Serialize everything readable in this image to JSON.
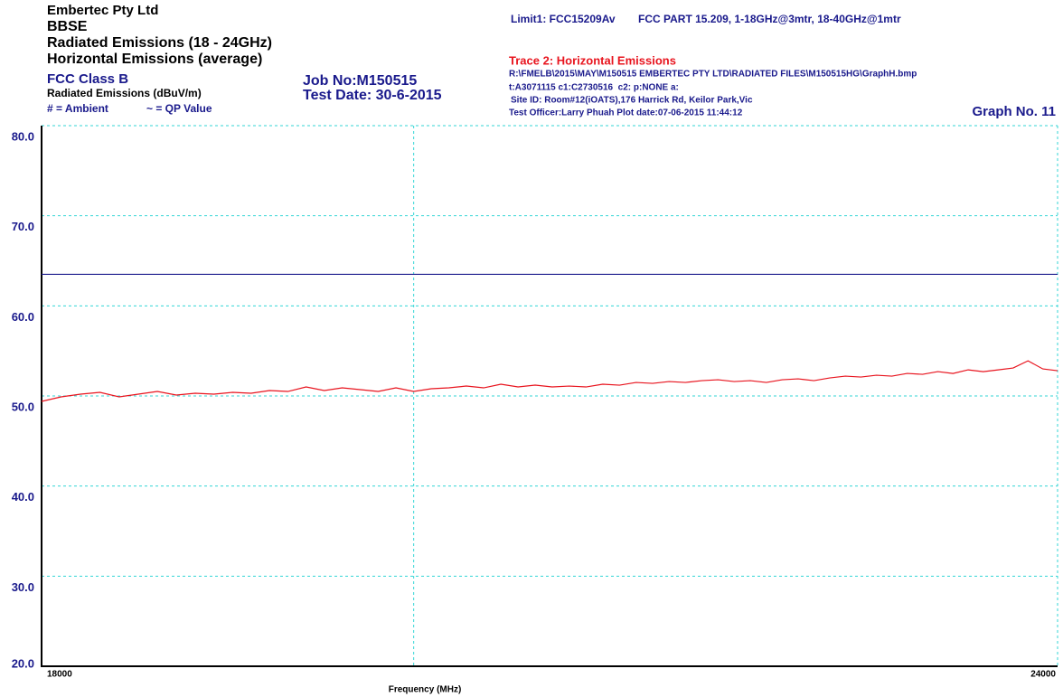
{
  "chart_data": {
    "type": "line",
    "company": "Embertec Pty Ltd",
    "product": "BBSE",
    "test": "Radiated Emissions (18 - 24GHz)",
    "polarization": "Horizontal Emissions (average)",
    "class": "FCC Class B",
    "y_label": "Radiated Emissions (dBuV/m)",
    "legend_ambient": "# = Ambient",
    "legend_qp": "~ = QP Value",
    "job_no": "Job No:M150515",
    "test_date": "Test Date: 30-6-2015",
    "limit_desc": "FCC PART 15.209, 1-18GHz@3mtr, 18-40GHz@1mtr",
    "trace_file": "R:\\FMELB\\2015\\MAY\\M150515 EMBERTEC PTY LTD\\RADIATED FILES\\M150515HG\\GraphH.bmp",
    "trace_info": "t:A3071115 c1:C2730516  c2: p:NONE a:",
    "site": "Site ID: Room#12(iOATS),176 Harrick Rd, Keilor Park,Vic",
    "officer": "Test Officer:Larry Phuah Plot date:07-06-2015 11:44:12",
    "graph_no": "Graph No. 11",
    "x_label": "Frequency (MHz)",
    "xscale": "log",
    "grid": true,
    "xlim": [
      18000,
      24000
    ],
    "xticks": [
      18000,
      {
        "value": 20000,
        "label": null
      },
      24000
    ],
    "ylim": [
      20,
      80
    ],
    "yticks": [
      {
        "value": 20,
        "label": "20.0"
      },
      {
        "value": 30,
        "label": "30.0"
      },
      {
        "value": 40,
        "label": "40.0"
      },
      {
        "value": 50,
        "label": "50.0"
      },
      {
        "value": 60,
        "label": "60.0"
      },
      {
        "value": 70,
        "label": "70.0"
      },
      {
        "value": 80,
        "label": "80.0"
      }
    ],
    "series": [
      {
        "name": "Limit1: FCC15209Av",
        "color": "#1a1a8c",
        "x": [
          18000,
          24000
        ],
        "values": [
          63.5,
          63.5
        ]
      },
      {
        "name": "Trace 2: Horizontal Emissions",
        "color": "#e8141e",
        "x": [
          18000,
          18100,
          18200,
          18300,
          18400,
          18500,
          18600,
          18700,
          18800,
          18900,
          19000,
          19100,
          19200,
          19300,
          19400,
          19500,
          19600,
          19700,
          19800,
          19900,
          20000,
          20100,
          20200,
          20300,
          20400,
          20500,
          20600,
          20700,
          20800,
          20900,
          21000,
          21100,
          21200,
          21300,
          21400,
          21500,
          21600,
          21700,
          21800,
          21900,
          22000,
          22100,
          22200,
          22300,
          22400,
          22500,
          22600,
          22700,
          22800,
          22900,
          23000,
          23100,
          23200,
          23300,
          23400,
          23500,
          23600,
          23700,
          23800,
          23900,
          24000
        ],
        "values": [
          49.4,
          49.9,
          50.2,
          50.4,
          49.9,
          50.2,
          50.5,
          50.1,
          50.3,
          50.2,
          50.4,
          50.3,
          50.6,
          50.5,
          51.0,
          50.6,
          50.9,
          50.7,
          50.5,
          50.9,
          50.5,
          50.8,
          50.9,
          51.1,
          50.9,
          51.3,
          51.0,
          51.2,
          51.0,
          51.1,
          51.0,
          51.3,
          51.2,
          51.5,
          51.4,
          51.6,
          51.5,
          51.7,
          51.8,
          51.6,
          51.7,
          51.5,
          51.8,
          51.9,
          51.7,
          52.0,
          52.2,
          52.1,
          52.3,
          52.2,
          52.5,
          52.4,
          52.7,
          52.5,
          52.9,
          52.7,
          52.9,
          53.1,
          53.9,
          53.0,
          52.8
        ]
      }
    ]
  }
}
